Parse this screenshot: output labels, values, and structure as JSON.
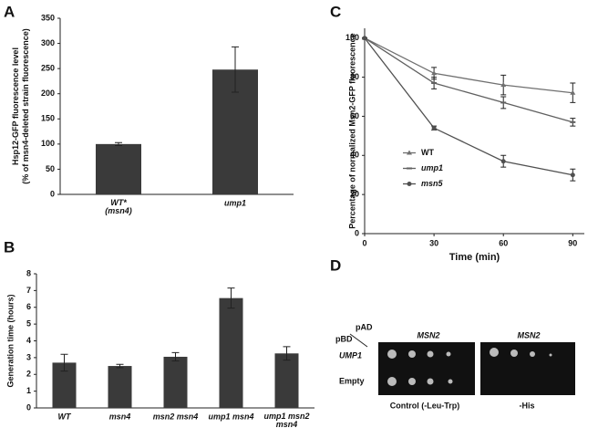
{
  "panel_labels": [
    "A",
    "B",
    "C",
    "D"
  ],
  "chart_data": [
    {
      "type": "bar",
      "ylabel": "Hsp12-GFP fluorescence level\n(% of msn4-deleted strain fluorescence)",
      "categories": [
        "WT*\n(msn4)",
        "ump1"
      ],
      "values": [
        100,
        248
      ],
      "errors": [
        3,
        45
      ],
      "color": "#3a3a3a",
      "ylim": [
        0,
        350
      ],
      "yticks": [
        0,
        50,
        100,
        150,
        200,
        250,
        300,
        350
      ]
    },
    {
      "type": "bar",
      "ylabel": "Generation time (hours)",
      "categories": [
        "WT",
        "msn4",
        "msn2 msn4",
        "ump1 msn4",
        "ump1 msn2\nmsn4"
      ],
      "values": [
        2.7,
        2.5,
        3.05,
        6.55,
        3.25
      ],
      "errors": [
        0.5,
        0.1,
        0.25,
        0.6,
        0.4
      ],
      "color": "#3a3a3a",
      "ylim": [
        0,
        8
      ],
      "yticks": [
        0,
        1,
        2,
        3,
        4,
        5,
        6,
        7,
        8
      ]
    },
    {
      "type": "line",
      "xlabel": "Time (min)",
      "ylabel": "Percentage of normalized Msn2-GFP fluorescence",
      "x": [
        0,
        30,
        60,
        90
      ],
      "xlim": [
        0,
        95
      ],
      "xticks": [
        0,
        30,
        60,
        90
      ],
      "ylim": [
        0,
        105
      ],
      "yticks": [
        0,
        20,
        40,
        60,
        80,
        100
      ],
      "legend": "center-left",
      "series": [
        {
          "name": "WT",
          "color": "#707070",
          "marker": "triangle",
          "values": [
            100,
            82,
            76,
            72
          ],
          "errors": [
            0,
            3,
            5,
            5
          ]
        },
        {
          "name": "ump1",
          "color": "#606060",
          "marker": "dash",
          "values": [
            100,
            77,
            67,
            57
          ],
          "errors": [
            0,
            3,
            3,
            2
          ]
        },
        {
          "name": "msn5",
          "color": "#505050",
          "marker": "circle",
          "values": [
            100,
            54,
            37,
            30
          ],
          "errors": [
            0,
            1,
            3,
            3
          ]
        }
      ]
    }
  ],
  "panel_d": {
    "pad": "pAD",
    "pbd": "pBD",
    "columns": [
      "MSN2",
      "MSN2"
    ],
    "rows": [
      "UMP1",
      "Empty"
    ],
    "conditions": [
      "Control (-Leu-Trp)",
      "-His"
    ]
  }
}
